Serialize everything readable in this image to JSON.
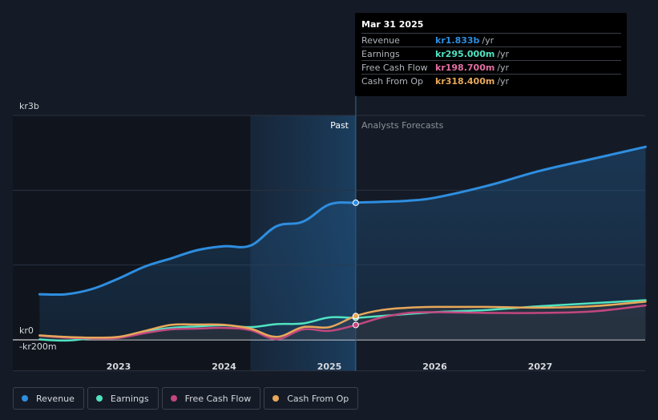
{
  "chart_data": {
    "type": "line",
    "currency_prefix": "kr",
    "y_axis": {
      "top_label": "kr3b",
      "zero_label": "kr0",
      "bottom_label": "-kr200m",
      "ylim": [
        -200,
        3000
      ],
      "unit": "kr m"
    },
    "x_axis": {
      "ticks": [
        {
          "label": "2023",
          "x": 2023.0
        },
        {
          "label": "2024",
          "x": 2024.0
        },
        {
          "label": "2025",
          "x": 2025.0
        },
        {
          "label": "2026",
          "x": 2026.0
        },
        {
          "label": "2027",
          "x": 2027.0
        }
      ],
      "xlim": [
        2022.0,
        2028.0
      ]
    },
    "divider": {
      "x": 2025.25,
      "past_label": "Past",
      "forecast_label": "Analysts Forecasts",
      "shade_start": 2024.25
    },
    "series": [
      {
        "name": "Revenue",
        "color": "#2e8ee0",
        "points": [
          [
            2022.25,
            610
          ],
          [
            2022.5,
            610
          ],
          [
            2022.75,
            680
          ],
          [
            2023.0,
            820
          ],
          [
            2023.25,
            980
          ],
          [
            2023.5,
            1090
          ],
          [
            2023.75,
            1200
          ],
          [
            2024.0,
            1250
          ],
          [
            2024.25,
            1260
          ],
          [
            2024.5,
            1520
          ],
          [
            2024.75,
            1580
          ],
          [
            2025.0,
            1810
          ],
          [
            2025.25,
            1833
          ],
          [
            2025.5,
            1845
          ],
          [
            2025.75,
            1860
          ],
          [
            2026.0,
            1900
          ],
          [
            2026.5,
            2060
          ],
          [
            2027.0,
            2260
          ],
          [
            2027.5,
            2420
          ],
          [
            2028.0,
            2580
          ]
        ]
      },
      {
        "name": "Earnings",
        "color": "#50e3c2",
        "points": [
          [
            2022.25,
            5
          ],
          [
            2022.5,
            -10
          ],
          [
            2022.75,
            20
          ],
          [
            2023.0,
            35
          ],
          [
            2023.25,
            110
          ],
          [
            2023.5,
            160
          ],
          [
            2023.75,
            180
          ],
          [
            2024.0,
            195
          ],
          [
            2024.25,
            170
          ],
          [
            2024.5,
            210
          ],
          [
            2024.75,
            220
          ],
          [
            2025.0,
            300
          ],
          [
            2025.25,
            295
          ],
          [
            2025.5,
            320
          ],
          [
            2026.0,
            370
          ],
          [
            2026.5,
            400
          ],
          [
            2027.0,
            450
          ],
          [
            2027.5,
            490
          ],
          [
            2028.0,
            530
          ]
        ]
      },
      {
        "name": "Free Cash Flow",
        "color": "#c2477f",
        "points": [
          [
            2022.25,
            55
          ],
          [
            2022.5,
            30
          ],
          [
            2022.75,
            20
          ],
          [
            2023.0,
            25
          ],
          [
            2023.25,
            90
          ],
          [
            2023.5,
            140
          ],
          [
            2023.75,
            150
          ],
          [
            2024.0,
            160
          ],
          [
            2024.25,
            130
          ],
          [
            2024.5,
            10
          ],
          [
            2024.75,
            140
          ],
          [
            2025.0,
            120
          ],
          [
            2025.25,
            198.7
          ],
          [
            2025.5,
            300
          ],
          [
            2025.75,
            360
          ],
          [
            2026.0,
            370
          ],
          [
            2026.5,
            360
          ],
          [
            2027.0,
            360
          ],
          [
            2027.5,
            380
          ],
          [
            2028.0,
            460
          ]
        ]
      },
      {
        "name": "Cash From Op",
        "color": "#e8a85a",
        "points": [
          [
            2022.25,
            60
          ],
          [
            2022.5,
            40
          ],
          [
            2022.75,
            30
          ],
          [
            2023.0,
            40
          ],
          [
            2023.25,
            120
          ],
          [
            2023.5,
            200
          ],
          [
            2023.75,
            205
          ],
          [
            2024.0,
            200
          ],
          [
            2024.25,
            150
          ],
          [
            2024.5,
            40
          ],
          [
            2024.75,
            170
          ],
          [
            2025.0,
            170
          ],
          [
            2025.25,
            318.4
          ],
          [
            2025.5,
            400
          ],
          [
            2025.75,
            430
          ],
          [
            2026.0,
            440
          ],
          [
            2026.5,
            440
          ],
          [
            2027.0,
            430
          ],
          [
            2027.5,
            450
          ],
          [
            2028.0,
            510
          ]
        ]
      }
    ],
    "highlight_x": 2025.25
  },
  "tooltip": {
    "date": "Mar 31 2025",
    "rows": [
      {
        "label": "Revenue",
        "value": "kr1.833b",
        "unit": "/yr",
        "color": "#2e8ee0"
      },
      {
        "label": "Earnings",
        "value": "kr295.000m",
        "unit": "/yr",
        "color": "#50e3c2"
      },
      {
        "label": "Free Cash Flow",
        "value": "kr198.700m",
        "unit": "/yr",
        "color": "#e26fa3"
      },
      {
        "label": "Cash From Op",
        "value": "kr318.400m",
        "unit": "/yr",
        "color": "#e8a85a"
      }
    ]
  },
  "legend": [
    {
      "label": "Revenue",
      "color": "#2e8ee0"
    },
    {
      "label": "Earnings",
      "color": "#50e3c2"
    },
    {
      "label": "Free Cash Flow",
      "color": "#c2477f"
    },
    {
      "label": "Cash From Op",
      "color": "#e8a85a"
    }
  ]
}
